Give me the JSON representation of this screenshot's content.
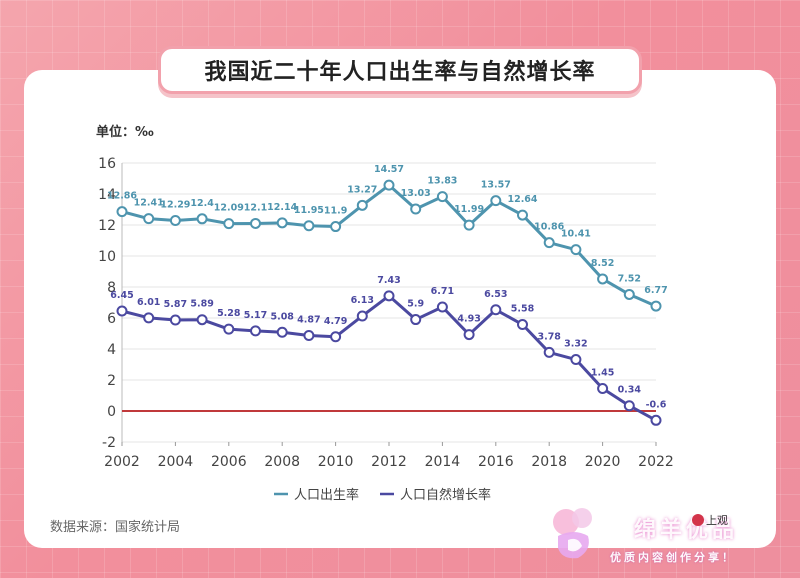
{
  "title": "我国近二十年人口出生率与自然增长率",
  "unit": "单位：‰",
  "source": "数据来源：国家统计局",
  "watermark": {
    "name": "绵羊优品",
    "slogan": "优质内容创作分享！",
    "badge": "上观"
  },
  "chart_data": {
    "type": "line",
    "x": [
      2002,
      2003,
      2004,
      2005,
      2006,
      2007,
      2008,
      2009,
      2010,
      2011,
      2012,
      2013,
      2014,
      2015,
      2016,
      2017,
      2018,
      2019,
      2020,
      2021,
      2022
    ],
    "x_ticks": [
      2002,
      2004,
      2006,
      2008,
      2010,
      2012,
      2014,
      2016,
      2018,
      2020,
      2022
    ],
    "y_ticks": [
      -2,
      0,
      2,
      4,
      6,
      8,
      10,
      12,
      14,
      16
    ],
    "ylim": [
      -2,
      16
    ],
    "grid": "horizontal",
    "legend": "bottom-center",
    "zero_line_color": "#c0393b",
    "series": [
      {
        "name": "人口出生率",
        "color": "#4e94ae",
        "values": [
          12.86,
          12.41,
          12.29,
          12.4,
          12.09,
          12.1,
          12.14,
          11.95,
          11.9,
          13.27,
          14.57,
          13.03,
          13.83,
          11.99,
          13.57,
          12.64,
          10.86,
          10.41,
          8.52,
          7.52,
          6.77
        ],
        "labels": [
          "12.86",
          "12.41",
          "12.29",
          "12.4",
          "12.09",
          "12.1",
          "12.14",
          "11.95",
          "11.9",
          "13.27",
          "14.57",
          "13.03",
          "13.83",
          "11.99",
          "13.57",
          "12.64",
          "10.86",
          "10.41",
          "8.52",
          "7.52",
          "6.77"
        ]
      },
      {
        "name": "人口自然增长率",
        "color": "#4b49a0",
        "values": [
          6.45,
          6.01,
          5.87,
          5.89,
          5.28,
          5.17,
          5.08,
          4.87,
          4.79,
          6.13,
          7.43,
          5.9,
          6.71,
          4.93,
          6.53,
          5.58,
          3.78,
          3.32,
          1.45,
          0.34,
          -0.6
        ],
        "labels": [
          "6.45",
          "6.01",
          "5.87",
          "5.89",
          "5.28",
          "5.17",
          "5.08",
          "4.87",
          "4.79",
          "6.13",
          "7.43",
          "5.9",
          "6.71",
          "4.93",
          "6.53",
          "5.58",
          "3.78",
          "3.32",
          "1.45",
          "0.34",
          "-0.6"
        ]
      }
    ]
  }
}
